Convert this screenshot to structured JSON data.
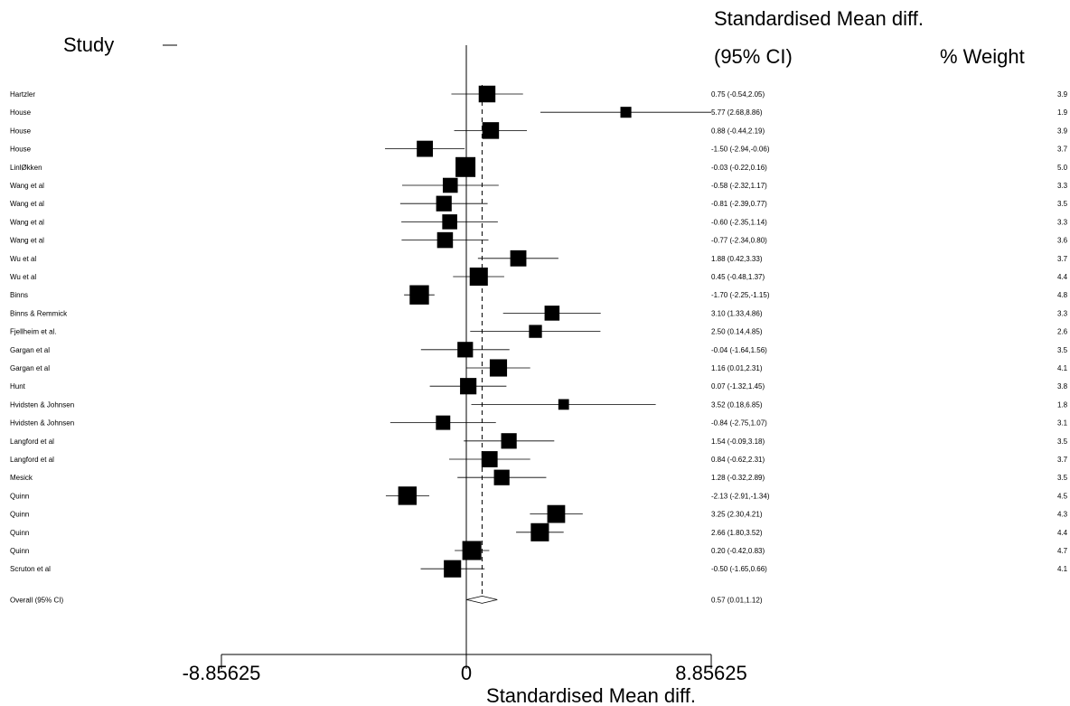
{
  "chart_data": {
    "type": "scatter",
    "header": {
      "study_label": "Study",
      "effect_label_line1": "Standardised Mean diff.",
      "effect_label_line2": "(95% CI)",
      "weight_label": "% Weight"
    },
    "xlabel": "Standardised Mean diff.",
    "xlim": [
      -8.85625,
      8.85625
    ],
    "xticks": [
      {
        "value": -8.85625,
        "label": "-8.85625"
      },
      {
        "value": 0,
        "label": "0"
      },
      {
        "value": 8.85625,
        "label": "8.85625"
      }
    ],
    "studies": [
      {
        "name": "Hartzler",
        "smd": 0.75,
        "lo": -0.54,
        "hi": 2.05,
        "ci_text": "0.75 (-0.54,2.05)",
        "weight_text": "3.9"
      },
      {
        "name": "House",
        "smd": 5.77,
        "lo": 2.68,
        "hi": 8.86,
        "ci_text": "5.77 (2.68,8.86)",
        "weight_text": "1.9"
      },
      {
        "name": "House",
        "smd": 0.88,
        "lo": -0.44,
        "hi": 2.19,
        "ci_text": "0.88 (-0.44,2.19)",
        "weight_text": "3.9"
      },
      {
        "name": "House",
        "smd": -1.5,
        "lo": -2.94,
        "hi": -0.06,
        "ci_text": "-1.50 (-2.94,-0.06)",
        "weight_text": "3.7"
      },
      {
        "name": "LinlØkken",
        "smd": -0.03,
        "lo": -0.22,
        "hi": 0.16,
        "ci_text": "-0.03 (-0.22,0.16)",
        "weight_text": "5.0"
      },
      {
        "name": "Wang et al",
        "smd": -0.58,
        "lo": -2.32,
        "hi": 1.17,
        "ci_text": "-0.58 (-2.32,1.17)",
        "weight_text": "3.3"
      },
      {
        "name": "Wang et al",
        "smd": -0.81,
        "lo": -2.39,
        "hi": 0.77,
        "ci_text": "-0.81 (-2.39,0.77)",
        "weight_text": "3.5"
      },
      {
        "name": "Wang et al",
        "smd": -0.6,
        "lo": -2.35,
        "hi": 1.14,
        "ci_text": "-0.60 (-2.35,1.14)",
        "weight_text": "3.3"
      },
      {
        "name": "Wang et al",
        "smd": -0.77,
        "lo": -2.34,
        "hi": 0.8,
        "ci_text": "-0.77 (-2.34,0.80)",
        "weight_text": "3.6"
      },
      {
        "name": "Wu et al",
        "smd": 1.88,
        "lo": 0.42,
        "hi": 3.33,
        "ci_text": "1.88 (0.42,3.33)",
        "weight_text": "3.7"
      },
      {
        "name": "Wu et al",
        "smd": 0.45,
        "lo": -0.48,
        "hi": 1.37,
        "ci_text": "0.45 (-0.48,1.37)",
        "weight_text": "4.4"
      },
      {
        "name": "Binns",
        "smd": -1.7,
        "lo": -2.25,
        "hi": -1.15,
        "ci_text": "-1.70 (-2.25,-1.15)",
        "weight_text": "4.8"
      },
      {
        "name": "Binns & Remmick",
        "smd": 3.1,
        "lo": 1.33,
        "hi": 4.86,
        "ci_text": "3.10 (1.33,4.86)",
        "weight_text": "3.3"
      },
      {
        "name": "Fjellheim et al.",
        "smd": 2.5,
        "lo": 0.14,
        "hi": 4.85,
        "ci_text": "2.50 (0.14,4.85)",
        "weight_text": "2.6"
      },
      {
        "name": "Gargan et al",
        "smd": -0.04,
        "lo": -1.64,
        "hi": 1.56,
        "ci_text": "-0.04 (-1.64,1.56)",
        "weight_text": "3.5"
      },
      {
        "name": "Gargan et al",
        "smd": 1.16,
        "lo": 0.01,
        "hi": 2.31,
        "ci_text": "1.16 (0.01,2.31)",
        "weight_text": "4.1"
      },
      {
        "name": "Hunt",
        "smd": 0.07,
        "lo": -1.32,
        "hi": 1.45,
        "ci_text": "0.07 (-1.32,1.45)",
        "weight_text": "3.8"
      },
      {
        "name": "Hvidsten & Johnsen",
        "smd": 3.52,
        "lo": 0.18,
        "hi": 6.85,
        "ci_text": "3.52 (0.18,6.85)",
        "weight_text": "1.8"
      },
      {
        "name": "Hvidsten & Johnsen",
        "smd": -0.84,
        "lo": -2.75,
        "hi": 1.07,
        "ci_text": "-0.84 (-2.75,1.07)",
        "weight_text": "3.1"
      },
      {
        "name": "Langford et al",
        "smd": 1.54,
        "lo": -0.09,
        "hi": 3.18,
        "ci_text": "1.54 (-0.09,3.18)",
        "weight_text": "3.5"
      },
      {
        "name": "Langford et al",
        "smd": 0.84,
        "lo": -0.62,
        "hi": 2.31,
        "ci_text": "0.84 (-0.62,2.31)",
        "weight_text": "3.7"
      },
      {
        "name": "Mesick",
        "smd": 1.28,
        "lo": -0.32,
        "hi": 2.89,
        "ci_text": "1.28 (-0.32,2.89)",
        "weight_text": "3.5"
      },
      {
        "name": "Quinn",
        "smd": -2.13,
        "lo": -2.91,
        "hi": -1.34,
        "ci_text": "-2.13 (-2.91,-1.34)",
        "weight_text": "4.5"
      },
      {
        "name": "Quinn",
        "smd": 3.25,
        "lo": 2.3,
        "hi": 4.21,
        "ci_text": "3.25 (2.30,4.21)",
        "weight_text": "4.3"
      },
      {
        "name": "Quinn",
        "smd": 2.66,
        "lo": 1.8,
        "hi": 3.52,
        "ci_text": "2.66 (1.80,3.52)",
        "weight_text": "4.4"
      },
      {
        "name": "Quinn",
        "smd": 0.2,
        "lo": -0.42,
        "hi": 0.83,
        "ci_text": "0.20 (-0.42,0.83)",
        "weight_text": "4.7"
      },
      {
        "name": "Scruton et al",
        "smd": -0.5,
        "lo": -1.65,
        "hi": 0.66,
        "ci_text": "-0.50 (-1.65,0.66)",
        "weight_text": "4.1"
      }
    ],
    "overall": {
      "name": "Overall (95% CI)",
      "smd": 0.57,
      "lo": 0.01,
      "hi": 1.12,
      "ci_text": "0.57 (0.01,1.12)"
    }
  }
}
